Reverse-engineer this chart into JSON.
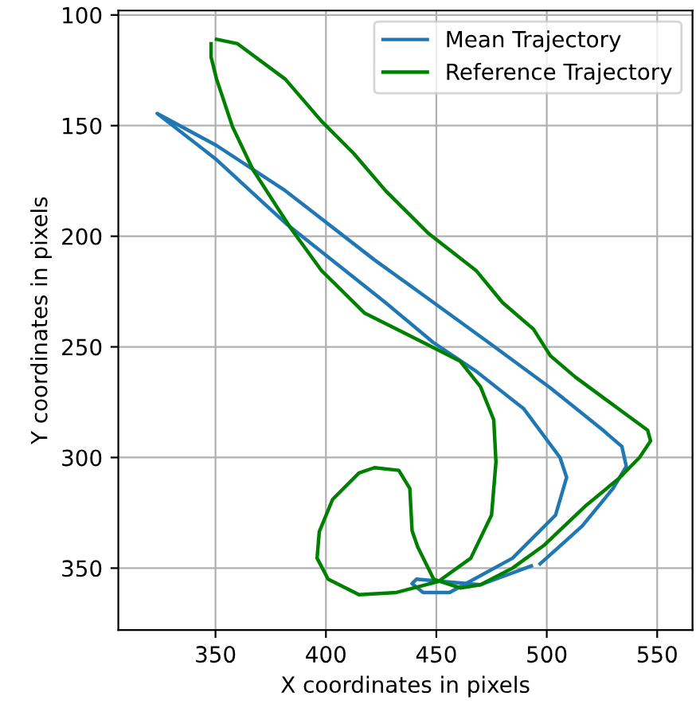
{
  "chart_data": {
    "type": "line",
    "xlabel": "X coordinates in pixels",
    "ylabel": "Y coordinates in pixels",
    "xlim": [
      306,
      566
    ],
    "ylim": [
      378,
      98
    ],
    "xticks": [
      350,
      400,
      450,
      500,
      550
    ],
    "yticks": [
      100,
      150,
      200,
      250,
      300,
      350
    ],
    "grid": true,
    "legend": "top right",
    "line_style": "solid",
    "marker": "none",
    "series": [
      {
        "name": "Mean Trajectory",
        "color": "#1f77b4",
        "x": [
          493,
          470,
          441,
          439,
          444,
          456,
          484.5,
          504,
          509,
          506,
          489.6,
          468,
          448.6,
          427,
          381.6,
          350,
          323.6,
          350.5,
          381.6,
          422,
          448.8,
          475,
          501.6,
          525.5,
          534,
          536,
          530,
          516,
          506,
          497
        ],
        "values": [
          349,
          357.5,
          355,
          357,
          361,
          361,
          345.5,
          326,
          309,
          300,
          278,
          261,
          248,
          230,
          194,
          165,
          144.5,
          159,
          179.4,
          210.7,
          230,
          249,
          268.5,
          287.7,
          295,
          304,
          314,
          331,
          340,
          348
        ]
      },
      {
        "name": "Reference Trajectory",
        "color": "#008000",
        "x": [
          348,
          348,
          350.5,
          357.7,
          367,
          383.8,
          398,
          417.6,
          446,
          460.8,
          470,
          476,
          477,
          475,
          465.6,
          451,
          432,
          415,
          401,
          396,
          397,
          403,
          415,
          422,
          433,
          438,
          439,
          441.6,
          448.8,
          461,
          470,
          484.5,
          499,
          518,
          532.7,
          542,
          547,
          545.7,
          527.7,
          513,
          501.6,
          494,
          480,
          468,
          446.4,
          427,
          412.6,
          398,
          381.6,
          360,
          350.5
        ],
        "values": [
          113,
          119,
          129,
          150.5,
          170,
          196,
          215.5,
          234.8,
          249,
          256.5,
          268,
          283,
          302,
          326,
          345.5,
          356,
          361,
          362,
          355,
          345.5,
          333.5,
          319,
          307,
          304.6,
          305.8,
          314,
          333,
          340.5,
          355,
          359,
          357.5,
          350,
          339.5,
          321.5,
          309.4,
          300,
          292.5,
          287.7,
          274.5,
          263.7,
          254,
          242,
          230,
          215.5,
          198.7,
          179.4,
          162.6,
          148,
          129,
          113,
          111
        ]
      }
    ]
  }
}
